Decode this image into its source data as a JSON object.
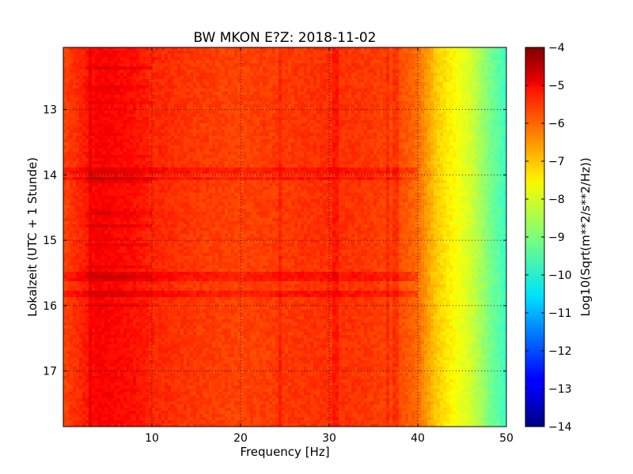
{
  "chart_data": {
    "type": "heatmap",
    "title": "BW MKON E?Z: 2018-11-02",
    "xlabel": "Frequency [Hz]",
    "ylabel": "Lokalzeit (UTC + 1 Stunde)",
    "xlim": [
      0,
      50
    ],
    "ylim": [
      17.85,
      12.05
    ],
    "x_ticks": [
      10,
      20,
      30,
      40,
      50
    ],
    "y_ticks": [
      13,
      14,
      15,
      16,
      17
    ],
    "grid": true,
    "colormap": "jet",
    "colorbar": {
      "label": "Log10(Sqrt(m**2/s**2/Hz))",
      "range": [
        -14,
        -4
      ],
      "ticks": [
        -4,
        -5,
        -6,
        -7,
        -8,
        -9,
        -10,
        -11,
        -12,
        -13,
        -14
      ]
    },
    "spectrum_profile": {
      "frequency_hz": [
        0,
        2,
        4,
        8,
        10,
        15,
        20,
        25,
        30,
        35,
        38,
        40,
        42,
        44,
        46,
        48,
        50
      ],
      "level": [
        -5.9,
        -5.6,
        -5.2,
        -5.4,
        -5.6,
        -5.8,
        -5.9,
        -5.8,
        -5.7,
        -5.8,
        -6.0,
        -6.3,
        -7.2,
        -7.7,
        -8.2,
        -9.0,
        -9.7
      ]
    },
    "notable_features": {
      "vertical_lines_hz": [
        3,
        24.5,
        30.5,
        31,
        36.5,
        37.5
      ],
      "horizontal_bands_hour": [
        15.53,
        15.58,
        15.83,
        13.95,
        14.05
      ]
    }
  }
}
